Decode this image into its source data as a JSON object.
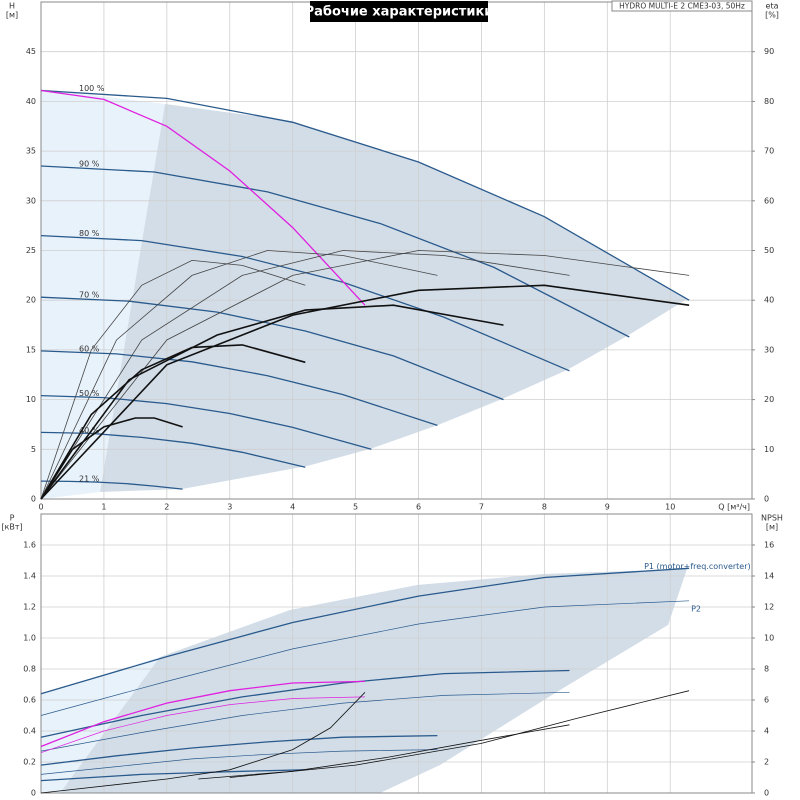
{
  "chart_data": [
    {
      "type": "line",
      "title": "Рабочие характеристики",
      "subtitle": "HYDRO MULTI-E 2 CME3-03, 50Hz",
      "ylabel": "H",
      "yunit": "[м]",
      "y2label": "eta",
      "y2unit": "[%]",
      "xlabel": "Q [м³/ч]",
      "xlim": [
        0,
        11.3
      ],
      "xticks": [
        0,
        1,
        2,
        3,
        4,
        5,
        6,
        7,
        8,
        9,
        10
      ],
      "ylim": [
        0,
        50
      ],
      "yticks": [
        0,
        5,
        10,
        15,
        20,
        25,
        30,
        35,
        40,
        45
      ],
      "y2lim": [
        0,
        100
      ],
      "y2ticks": [
        0,
        10,
        20,
        30,
        40,
        50,
        60,
        70,
        80,
        90
      ],
      "grid": true,
      "series": [
        {
          "name": "100 %",
          "color": "#2a5a8c",
          "x": [
            0,
            2,
            4,
            6,
            8,
            10.3
          ],
          "values": [
            41.1,
            40.3,
            37.9,
            33.9,
            28.4,
            20
          ]
        },
        {
          "name": "90 %",
          "color": "#2a5a8c",
          "x": [
            0,
            1.8,
            3.6,
            5.4,
            7.2,
            9.35
          ],
          "values": [
            33.5,
            32.9,
            30.9,
            27.7,
            23.3,
            16.3
          ]
        },
        {
          "name": "80 %",
          "color": "#2a5a8c",
          "x": [
            0,
            1.6,
            3.2,
            4.8,
            6.4,
            8.4
          ],
          "values": [
            26.5,
            26,
            24.4,
            21.8,
            18.3,
            12.9
          ]
        },
        {
          "name": "70 %",
          "color": "#2a5a8c",
          "x": [
            0,
            1.4,
            2.8,
            4.2,
            5.6,
            7.35
          ],
          "values": [
            20.3,
            19.9,
            18.8,
            16.9,
            14.4,
            10
          ]
        },
        {
          "name": "60 %",
          "color": "#2a5a8c",
          "x": [
            0,
            1.2,
            2.4,
            3.6,
            4.8,
            6.3
          ],
          "values": [
            14.9,
            14.6,
            13.8,
            12.4,
            10.5,
            7.4
          ]
        },
        {
          "name": "50 %",
          "color": "#2a5a8c",
          "x": [
            0,
            1,
            2,
            3,
            4,
            5.25
          ],
          "values": [
            10.4,
            10.2,
            9.6,
            8.6,
            7.2,
            5
          ]
        },
        {
          "name": "40 %",
          "color": "#2a5a8c",
          "x": [
            0,
            0.8,
            1.6,
            2.4,
            3.2,
            4.2
          ],
          "values": [
            6.7,
            6.6,
            6.2,
            5.6,
            4.7,
            3.2
          ]
        },
        {
          "name": "21 %",
          "color": "#2a5a8c",
          "x": [
            0,
            0.45,
            0.9,
            1.35,
            1.8,
            2.25
          ],
          "values": [
            1.8,
            1.77,
            1.7,
            1.55,
            1.3,
            1
          ]
        },
        {
          "color": "#e020e0",
          "x": [
            0,
            1,
            2,
            3,
            4,
            5.15
          ],
          "values": [
            41.1,
            40.2,
            37.5,
            33,
            27.3,
            19.5
          ]
        },
        {
          "color": "#444",
          "axis": "y2",
          "x": [
            0,
            2,
            4,
            6,
            8,
            10.3
          ],
          "values": [
            0,
            32,
            45,
            50,
            49,
            45
          ]
        },
        {
          "color": "#444",
          "axis": "y2",
          "x": [
            0,
            1.6,
            3.2,
            4.8,
            6.4,
            8.4
          ],
          "values": [
            0,
            32,
            45,
            50,
            49,
            45
          ]
        },
        {
          "color": "#444",
          "axis": "y2",
          "x": [
            0,
            1.2,
            2.4,
            3.6,
            4.8,
            6.3
          ],
          "values": [
            0,
            32,
            45,
            50,
            49,
            45
          ]
        },
        {
          "color": "#444",
          "axis": "y2",
          "x": [
            0,
            0.8,
            1.6,
            2.4,
            3.2,
            4.2
          ],
          "values": [
            0,
            30,
            43,
            48,
            47,
            43
          ]
        },
        {
          "color": "#111",
          "axis": "y2",
          "style": "bold",
          "x": [
            0,
            2,
            4,
            6,
            8,
            10.3
          ],
          "values": [
            0,
            27,
            37,
            42,
            43,
            39
          ]
        },
        {
          "color": "#111",
          "axis": "y2",
          "style": "bold",
          "x": [
            0,
            1.4,
            2.8,
            4.2,
            5.6,
            7.35
          ],
          "values": [
            0,
            24,
            33,
            38,
            39,
            35
          ]
        },
        {
          "color": "#111",
          "axis": "y2",
          "style": "bold",
          "x": [
            0,
            0.8,
            1.6,
            2.4,
            3.2,
            4.2
          ],
          "values": [
            0,
            17,
            26,
            30.5,
            31,
            27.5
          ]
        },
        {
          "color": "#111",
          "axis": "y2",
          "style": "bold",
          "x": [
            0,
            0.5,
            1,
            1.5,
            1.8,
            2.25
          ],
          "values": [
            0,
            10,
            14.5,
            16.3,
            16.3,
            14.5
          ]
        }
      ]
    },
    {
      "type": "line",
      "ylabel": "P",
      "yunit": "[кВт]",
      "y2label": "NPSH",
      "y2unit": "[м]",
      "xlim": [
        0,
        11.3
      ],
      "xticks": [
        0,
        1,
        2,
        3,
        4,
        5,
        6,
        7,
        8,
        9,
        10
      ],
      "ylim": [
        0,
        1.8
      ],
      "yticks": [
        0,
        0.2,
        0.4,
        0.6,
        0.8,
        {
          "value": 1,
          "label": "1.0"
        },
        1.2,
        1.4,
        1.6
      ],
      "y2lim": [
        0,
        18
      ],
      "y2ticks": [
        0,
        2,
        4,
        6,
        8,
        10,
        12,
        14,
        16
      ],
      "grid": true,
      "series": [
        {
          "name": "P1 (motor+freq.converter)",
          "color": "#2a5a8c",
          "x": [
            0,
            2,
            4,
            6,
            8,
            10.3
          ],
          "values": [
            0.64,
            0.88,
            1.1,
            1.27,
            1.39,
            1.45
          ]
        },
        {
          "name": "P2",
          "color": "#2a5a8c",
          "style": "thin",
          "x": [
            0,
            2,
            4,
            6,
            8,
            10.3
          ],
          "values": [
            0.5,
            0.72,
            0.93,
            1.09,
            1.2,
            1.24
          ]
        },
        {
          "color": "#2a5a8c",
          "x": [
            0,
            1.6,
            3.2,
            4.8,
            6.4,
            8.4
          ],
          "values": [
            0.36,
            0.5,
            0.62,
            0.71,
            0.77,
            0.79
          ]
        },
        {
          "color": "#2a5a8c",
          "style": "thin",
          "x": [
            0,
            1.6,
            3.2,
            4.8,
            6.4,
            8.4
          ],
          "values": [
            0.27,
            0.39,
            0.5,
            0.58,
            0.63,
            0.65
          ]
        },
        {
          "color": "#2a5a8c",
          "x": [
            0,
            1.2,
            2.4,
            3.6,
            4.8,
            6.3
          ],
          "values": [
            0.18,
            0.24,
            0.29,
            0.33,
            0.36,
            0.37
          ]
        },
        {
          "color": "#2a5a8c",
          "style": "thin",
          "x": [
            0,
            1.2,
            2.4,
            3.6,
            4.8,
            6.3
          ],
          "values": [
            0.12,
            0.17,
            0.22,
            0.25,
            0.27,
            0.28
          ]
        },
        {
          "color": "#2a5a8c",
          "x": [
            0,
            0.8,
            1.6,
            2.4,
            3.2,
            4.2
          ],
          "values": [
            0.08,
            0.1,
            0.12,
            0.13,
            0.14,
            0.15
          ]
        },
        {
          "color": "#e020e0",
          "x": [
            0,
            1,
            2,
            3,
            4,
            5.15
          ],
          "values": [
            0.3,
            0.46,
            0.58,
            0.66,
            0.71,
            0.72
          ]
        },
        {
          "color": "#e020e0",
          "style": "thin",
          "x": [
            0,
            1,
            2,
            3,
            4,
            5.15
          ],
          "values": [
            0.26,
            0.4,
            0.5,
            0.57,
            0.61,
            0.62
          ]
        },
        {
          "color": "#111",
          "axis": "y2",
          "x": [
            3,
            5,
            7,
            8.5,
            10.3
          ],
          "values": [
            1,
            1.8,
            3.2,
            4.8,
            6.6
          ]
        },
        {
          "color": "#111",
          "axis": "y2",
          "x": [
            2.5,
            4,
            5.5,
            7,
            8.4
          ],
          "values": [
            0.9,
            1.4,
            2.3,
            3.4,
            4.4
          ]
        },
        {
          "color": "#111",
          "axis": "y2",
          "x": [
            0,
            2,
            3,
            4,
            4.6,
            5.15
          ],
          "values": [
            0,
            0.9,
            1.5,
            2.8,
            4.2,
            6.5
          ]
        }
      ]
    }
  ]
}
